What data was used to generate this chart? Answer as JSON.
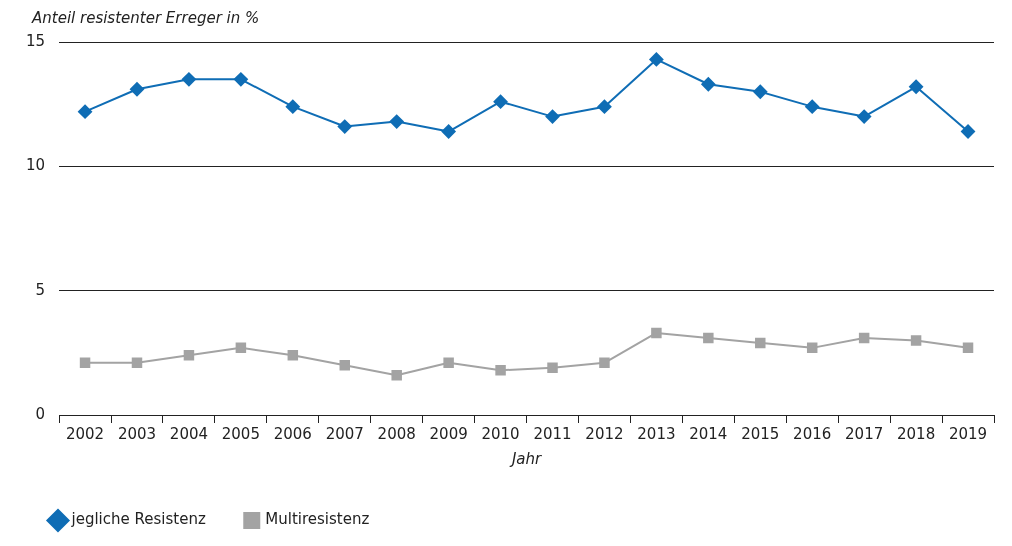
{
  "chart_data": {
    "type": "line",
    "ylabel": "Anteil resistenter Erreger in %",
    "xlabel": "Jahr",
    "categories": [
      "2002",
      "2003",
      "2004",
      "2005",
      "2006",
      "2007",
      "2008",
      "2009",
      "2010",
      "2011",
      "2012",
      "2013",
      "2014",
      "2015",
      "2016",
      "2017",
      "2018",
      "2019"
    ],
    "series": [
      {
        "name": "jegliche Resistenz",
        "color": "#0f6db5",
        "marker": "diamond",
        "values": [
          12.2,
          13.1,
          13.5,
          13.5,
          12.4,
          11.6,
          11.8,
          11.4,
          12.6,
          12.0,
          12.4,
          14.3,
          13.3,
          13.0,
          12.4,
          12.0,
          13.2,
          11.4
        ]
      },
      {
        "name": "Multiresistenz",
        "color": "#a3a3a3",
        "marker": "square",
        "values": [
          2.1,
          2.1,
          2.4,
          2.7,
          2.4,
          2.0,
          1.6,
          2.1,
          1.8,
          1.9,
          2.1,
          3.3,
          3.1,
          2.9,
          2.7,
          3.1,
          3.0,
          2.7
        ]
      }
    ],
    "ylim": [
      0,
      15
    ],
    "yticks": [
      0,
      5,
      10,
      15
    ],
    "grid": "y",
    "legend": "bottom left",
    "line_style": "solid"
  }
}
